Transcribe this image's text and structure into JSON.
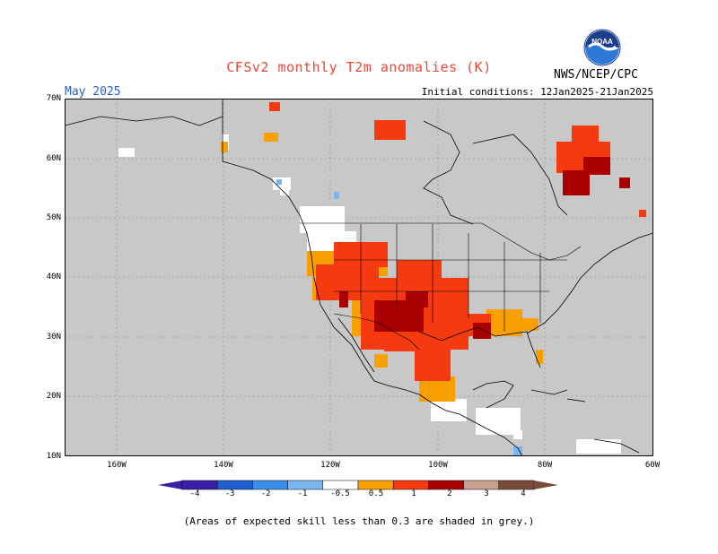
{
  "title": "CFSv2 monthly T2m anomalies (K)",
  "agency": "NWS/NCEP/CPC",
  "logo_text": "NOAA",
  "valid_month": "May 2025",
  "initial_conditions": "Initial conditions: 12Jan2025-21Jan2025",
  "footnote": "(Areas of expected skill less than 0.3 are shaded in grey.)",
  "lat_labels": [
    "70N",
    "60N",
    "50N",
    "40N",
    "30N",
    "20N",
    "10N"
  ],
  "lon_labels": [
    "160W",
    "140W",
    "120W",
    "100W",
    "80W",
    "60W"
  ],
  "colorbar": {
    "labels": [
      "-4",
      "-3",
      "-2",
      "-1",
      "-0.5",
      "0.5",
      "1",
      "2",
      "3",
      "4"
    ],
    "colors": [
      "#3a1fa8",
      "#1f5fd0",
      "#3a8fe8",
      "#7ab6f0",
      "#ffffff",
      "#f7a000",
      "#f53a10",
      "#a80000",
      "#c8a090",
      "#7a4a3a"
    ]
  },
  "colors": {
    "grey_skill": "#c8c8c8",
    "anomaly_warm_1": "#f7a000",
    "anomaly_warm_2": "#f53a10",
    "anomaly_warm_3": "#a80000",
    "anomaly_cool_1": "#7ab6f0",
    "neutral": "#ffffff",
    "title_red": "#e8483a",
    "month_blue": "#2a5fd0"
  }
}
